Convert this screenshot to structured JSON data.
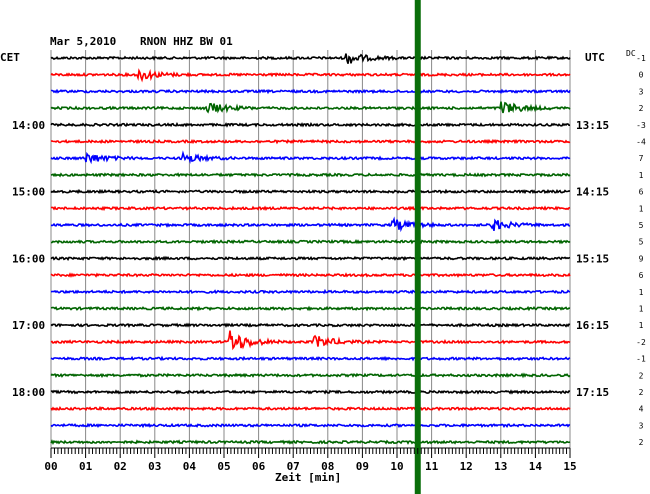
{
  "header": {
    "date": "Mar 5,2010",
    "station": "RNON HHZ BW 01",
    "left_zone": "CET",
    "right_zone": "UTC",
    "dc_label": "DC"
  },
  "colors": {
    "trace_cycle": [
      "#000000",
      "#ff0000",
      "#0000ff",
      "#006400"
    ],
    "grid": "#888888",
    "marker": "#0a6e0a"
  },
  "chart_data": {
    "type": "line",
    "xlabel": "Zeit [min]",
    "xlim": [
      0,
      15
    ],
    "x_ticks": [
      "00",
      "01",
      "02",
      "03",
      "04",
      "05",
      "06",
      "07",
      "08",
      "09",
      "10",
      "11",
      "12",
      "13",
      "14",
      "15"
    ],
    "trace_count": 24,
    "minutes_per_trace": 15,
    "left_time_labels": [
      {
        "trace": 4,
        "label": "14:00"
      },
      {
        "trace": 8,
        "label": "15:00"
      },
      {
        "trace": 12,
        "label": "16:00"
      },
      {
        "trace": 16,
        "label": "17:00"
      },
      {
        "trace": 20,
        "label": "18:00"
      }
    ],
    "right_time_labels": [
      {
        "trace": 4,
        "label": "13:15"
      },
      {
        "trace": 8,
        "label": "14:15"
      },
      {
        "trace": 12,
        "label": "15:15"
      },
      {
        "trace": 16,
        "label": "16:15"
      },
      {
        "trace": 20,
        "label": "17:15"
      }
    ],
    "dc_offsets": [
      "-1",
      "0",
      "3",
      "2",
      "-3",
      "-4",
      "7",
      "1",
      "6",
      "1",
      "5",
      "5",
      "9",
      "6",
      "1",
      "1",
      "1",
      "-2",
      "-1",
      "2",
      "2",
      "4",
      "3",
      "2"
    ],
    "current_time_marker_min": 10.6,
    "events": [
      {
        "trace": 0,
        "start_min": 8.5,
        "amp": 2.2
      },
      {
        "trace": 1,
        "start_min": 2.5,
        "amp": 2.0
      },
      {
        "trace": 3,
        "start_min": 4.5,
        "amp": 2.0
      },
      {
        "trace": 3,
        "start_min": 13.0,
        "amp": 2.4
      },
      {
        "trace": 6,
        "start_min": 1.0,
        "amp": 1.8
      },
      {
        "trace": 6,
        "start_min": 3.8,
        "amp": 1.6
      },
      {
        "trace": 10,
        "start_min": 9.8,
        "amp": 2.2
      },
      {
        "trace": 10,
        "start_min": 12.7,
        "amp": 2.0
      },
      {
        "trace": 17,
        "start_min": 5.1,
        "amp": 4.5
      },
      {
        "trace": 17,
        "start_min": 7.6,
        "amp": 2.2
      }
    ]
  }
}
